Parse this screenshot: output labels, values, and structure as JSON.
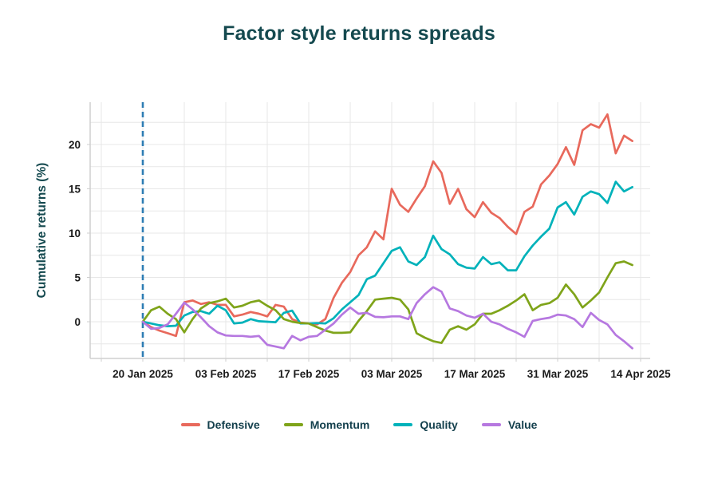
{
  "title": "Factor style returns spreads",
  "y_axis": {
    "label": "Cumulative returns (%)",
    "ticks": [
      0,
      5,
      10,
      15,
      20
    ]
  },
  "x_axis": {
    "tick_labels": [
      "20 Jan 2025",
      "03 Feb 2025",
      "17 Feb 2025",
      "03 Mar 2025",
      "17 Mar 2025",
      "31 Mar 2025",
      "14 Apr 2025"
    ],
    "tick_days": [
      0,
      10,
      20,
      30,
      40,
      50,
      60
    ]
  },
  "colors": {
    "defensive": "#e8695c",
    "momentum": "#7fa41a",
    "quality": "#00b2ba",
    "value": "#b678e0",
    "grid": "#e7e7e7",
    "spine": "#cfcfcf",
    "start_line": "#2e7db4",
    "tick_text": "#1a1a1a",
    "heading": "#14494f"
  },
  "legend": {
    "items": [
      {
        "label": "Defensive",
        "color": "#e8695c"
      },
      {
        "label": "Momentum",
        "color": "#7fa41a"
      },
      {
        "label": "Quality",
        "color": "#00b2ba"
      },
      {
        "label": "Value",
        "color": "#b678e0"
      }
    ]
  },
  "chart_data": {
    "type": "line",
    "title": "Factor style returns spreads",
    "xlabel": "",
    "ylabel": "Cumulative returns (%)",
    "ylim": [
      -4.1,
      24.8
    ],
    "grid": true,
    "legend_position": "bottom",
    "annotations": [
      {
        "type": "vline",
        "x": "20 Jan 2025",
        "style": "dashed",
        "color": "#2e7db4"
      }
    ],
    "x": [
      "20 Jan",
      "21 Jan",
      "22 Jan",
      "23 Jan",
      "24 Jan",
      "27 Jan",
      "28 Jan",
      "29 Jan",
      "30 Jan",
      "31 Jan",
      "03 Feb",
      "04 Feb",
      "05 Feb",
      "06 Feb",
      "07 Feb",
      "10 Feb",
      "11 Feb",
      "12 Feb",
      "13 Feb",
      "14 Feb",
      "17 Feb",
      "18 Feb",
      "19 Feb",
      "20 Feb",
      "21 Feb",
      "24 Feb",
      "25 Feb",
      "26 Feb",
      "27 Feb",
      "28 Feb",
      "03 Mar",
      "04 Mar",
      "05 Mar",
      "06 Mar",
      "07 Mar",
      "10 Mar",
      "11 Mar",
      "12 Mar",
      "13 Mar",
      "14 Mar",
      "17 Mar",
      "18 Mar",
      "19 Mar",
      "20 Mar",
      "21 Mar",
      "24 Mar",
      "25 Mar",
      "26 Mar",
      "27 Mar",
      "28 Mar",
      "31 Mar",
      "01 Apr",
      "02 Apr",
      "03 Apr",
      "04 Apr",
      "07 Apr",
      "08 Apr",
      "09 Apr",
      "10 Apr",
      "11 Apr"
    ],
    "series": [
      {
        "name": "Defensive",
        "color": "#e8695c",
        "values": [
          0,
          -0.6,
          -1.0,
          -1.3,
          -1.6,
          2.2,
          2.4,
          2.0,
          2.2,
          1.9,
          1.9,
          0.6,
          0.8,
          1.1,
          0.9,
          0.6,
          1.9,
          1.7,
          0.3,
          -0.1,
          -0.2,
          -0.3,
          0.3,
          2.7,
          4.4,
          5.6,
          7.5,
          8.4,
          10.2,
          9.3,
          15.0,
          13.2,
          12.4,
          13.9,
          15.3,
          18.1,
          16.8,
          13.3,
          15.0,
          12.7,
          11.8,
          13.5,
          12.3,
          11.7,
          10.7,
          9.9,
          12.4,
          13.0,
          15.5,
          16.5,
          17.8,
          19.7,
          17.7,
          21.6,
          22.3,
          21.9,
          23.4,
          19.0,
          21.0,
          20.4
        ]
      },
      {
        "name": "Quality",
        "color": "#00b2ba",
        "values": [
          0,
          -0.2,
          -0.4,
          -0.5,
          -0.45,
          0.7,
          1.1,
          1.2,
          0.9,
          1.8,
          1.3,
          -0.2,
          -0.1,
          0.3,
          0.05,
          0.0,
          -0.05,
          1.0,
          1.25,
          -0.2,
          -0.2,
          -0.15,
          -0.2,
          0.4,
          1.4,
          2.2,
          3.0,
          4.8,
          5.2,
          6.6,
          8.0,
          8.4,
          6.8,
          6.4,
          7.3,
          9.7,
          8.2,
          7.6,
          6.5,
          6.1,
          6.0,
          7.3,
          6.5,
          6.7,
          5.8,
          5.8,
          7.4,
          8.6,
          9.6,
          10.5,
          12.9,
          13.5,
          12.1,
          14.1,
          14.7,
          14.4,
          13.4,
          15.8,
          14.7,
          15.2
        ]
      },
      {
        "name": "Momentum",
        "color": "#7fa41a",
        "values": [
          0,
          1.3,
          1.7,
          0.9,
          0.3,
          -1.2,
          0.3,
          1.5,
          2.1,
          2.3,
          2.6,
          1.6,
          1.8,
          2.2,
          2.4,
          1.8,
          1.3,
          0.3,
          0.0,
          -0.15,
          -0.2,
          -0.6,
          -1.0,
          -1.25,
          -1.25,
          -1.2,
          0.1,
          1.2,
          2.5,
          2.6,
          2.7,
          2.5,
          1.4,
          -1.3,
          -1.8,
          -2.2,
          -2.4,
          -0.9,
          -0.5,
          -0.9,
          -0.3,
          0.9,
          0.9,
          1.3,
          1.8,
          2.4,
          3.1,
          1.3,
          1.9,
          2.1,
          2.7,
          4.2,
          3.1,
          1.6,
          2.4,
          3.3,
          5.0,
          6.6,
          6.8,
          6.4
        ]
      },
      {
        "name": "Value",
        "color": "#b678e0",
        "values": [
          0,
          -0.8,
          -0.7,
          -0.3,
          0.9,
          2.15,
          1.4,
          0.5,
          -0.5,
          -1.2,
          -1.55,
          -1.6,
          -1.6,
          -1.7,
          -1.6,
          -2.6,
          -2.8,
          -3.0,
          -1.6,
          -2.1,
          -1.7,
          -1.6,
          -0.9,
          -0.2,
          0.8,
          1.6,
          0.9,
          1.0,
          0.55,
          0.5,
          0.6,
          0.6,
          0.3,
          2.1,
          3.1,
          3.9,
          3.4,
          1.5,
          1.2,
          0.7,
          0.45,
          0.9,
          0.0,
          -0.3,
          -0.8,
          -1.2,
          -1.7,
          0.1,
          0.3,
          0.45,
          0.8,
          0.7,
          0.3,
          -0.6,
          1.0,
          0.2,
          -0.3,
          -1.5,
          -2.2,
          -3.0
        ]
      }
    ]
  }
}
